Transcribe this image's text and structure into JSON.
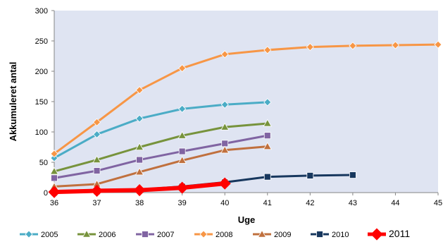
{
  "chart_data": {
    "type": "line",
    "title": "",
    "xlabel": "Uge",
    "ylabel": "Akkumuleret antal",
    "xlim": [
      36,
      45
    ],
    "ylim": [
      0,
      300
    ],
    "x_ticks": [
      "36",
      "37",
      "38",
      "39",
      "40",
      "41",
      "42",
      "43",
      "44",
      "45"
    ],
    "y_ticks": [
      "0",
      "50",
      "100",
      "150",
      "200",
      "250",
      "300"
    ],
    "grid": false,
    "legend": "bottom",
    "series": [
      {
        "name": "2005",
        "color": "#4bacc6",
        "marker": "diamond",
        "x": [
          36,
          37,
          38,
          39,
          40,
          41
        ],
        "values": [
          57,
          96,
          122,
          138,
          145,
          149
        ]
      },
      {
        "name": "2006",
        "color": "#77933c",
        "marker": "triangle",
        "x": [
          36,
          37,
          38,
          39,
          40,
          41
        ],
        "values": [
          35,
          54,
          75,
          94,
          108,
          114
        ]
      },
      {
        "name": "2007",
        "color": "#8064a2",
        "marker": "square",
        "x": [
          36,
          37,
          38,
          39,
          40,
          41
        ],
        "values": [
          24,
          36,
          54,
          68,
          81,
          94
        ]
      },
      {
        "name": "2008",
        "color": "#f79646",
        "marker": "diamond",
        "x": [
          36,
          37,
          38,
          39,
          40,
          41,
          42,
          43,
          44,
          45
        ],
        "values": [
          64,
          116,
          169,
          205,
          228,
          235,
          240,
          242,
          243,
          244
        ]
      },
      {
        "name": "2009",
        "color": "#c0703e",
        "marker": "triangle",
        "x": [
          36,
          37,
          38,
          39,
          40,
          41
        ],
        "values": [
          10,
          14,
          34,
          53,
          70,
          76
        ]
      },
      {
        "name": "2010",
        "color": "#17375e",
        "marker": "square",
        "x": [
          36,
          37,
          38,
          39,
          40,
          41,
          42,
          43
        ],
        "values": [
          0,
          2,
          5,
          10,
          17,
          26,
          28,
          29
        ]
      },
      {
        "name": "2011",
        "color": "#ff0000",
        "marker": "bigdiamond",
        "x": [
          36,
          37,
          38,
          39,
          40
        ],
        "values": [
          1,
          3,
          4,
          8,
          15
        ]
      }
    ]
  }
}
